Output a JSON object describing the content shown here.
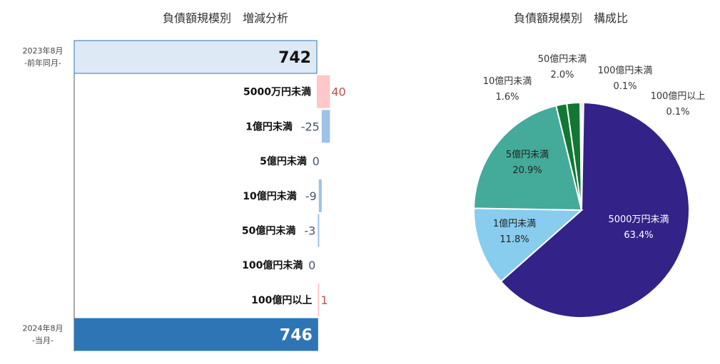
{
  "waterfall": {
    "title": "負債額規模別　増減分析",
    "start": {
      "period": "2023年8月",
      "sub": "-前年同月-",
      "value": 742
    },
    "end": {
      "period": "2024年8月",
      "sub": "-当月-",
      "value": 746
    },
    "colors": {
      "start": "#dde9f5",
      "end": "#2e75b6",
      "increase": "#ffc7c7",
      "decrease": "#9dc3e6",
      "increase_text": "#c0504d",
      "decrease_text": "#44546a"
    }
  },
  "pie": {
    "title": "負債額規模別　構成比"
  },
  "chart_data": [
    {
      "type": "bar",
      "subtype": "waterfall",
      "title": "負債額規模別　増減分析",
      "categories": [
        "5000万円未満",
        "1億円未満",
        "5億円未満",
        "10億円未満",
        "50億円未満",
        "100億円未満",
        "100億円以上"
      ],
      "values": [
        40,
        -25,
        0,
        -9,
        -3,
        0,
        1
      ],
      "start_value": 742,
      "end_value": 746
    },
    {
      "type": "pie",
      "title": "負債額規模別　構成比",
      "categories": [
        "5000万円未満",
        "1億円未満",
        "5億円未満",
        "10億円未満",
        "50億円未満",
        "100億円未満",
        "100億円以上"
      ],
      "values": [
        63.4,
        11.8,
        20.9,
        1.6,
        2.0,
        0.1,
        0.1
      ],
      "labels": [
        "63.4%",
        "11.8%",
        "20.9%",
        "1.6%",
        "2.0%",
        "0.1%",
        "0.1%"
      ],
      "colors": [
        "#332288",
        "#88ccee",
        "#44aa99",
        "#117733",
        "#117733",
        "#999933",
        "#999933"
      ]
    }
  ]
}
